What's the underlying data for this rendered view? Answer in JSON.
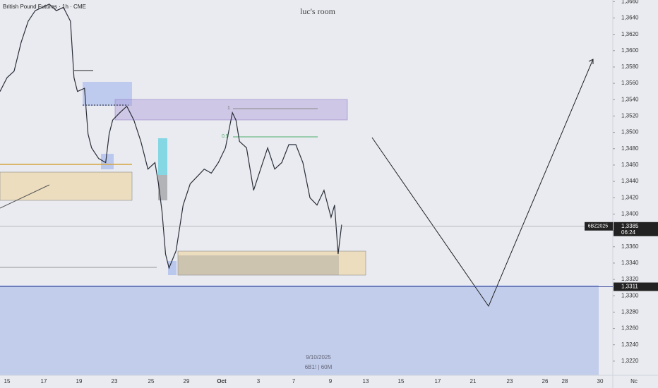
{
  "chart_data": {
    "type": "line",
    "title": "British Pound Futures · 1h · CME",
    "watermark": "luc's room",
    "date": "9/10/2025",
    "symbol": "6B1! | 60M",
    "x": [
      0,
      2,
      4,
      6,
      8,
      10,
      12,
      14,
      16,
      18,
      20,
      21,
      22,
      24,
      25,
      26,
      28,
      30,
      31,
      32,
      34,
      36,
      38,
      40,
      42,
      44,
      45,
      46,
      47,
      48,
      50,
      52,
      54,
      56,
      58,
      60,
      62,
      64,
      66,
      67,
      68,
      70,
      72,
      74,
      76,
      78,
      80,
      82,
      84,
      86,
      88,
      90,
      92,
      94,
      95,
      96,
      97
    ],
    "values": [
      1.355,
      1.3567,
      1.3575,
      1.361,
      1.3636,
      1.3649,
      1.3653,
      1.3657,
      1.3649,
      1.3653,
      1.3636,
      1.3567,
      1.355,
      1.3554,
      1.3498,
      1.3481,
      1.3468,
      1.3463,
      1.3498,
      1.3515,
      1.3524,
      1.3532,
      1.3515,
      1.3489,
      1.3455,
      1.3463,
      1.3437,
      1.3403,
      1.3351,
      1.3334,
      1.3355,
      1.3411,
      1.3437,
      1.3446,
      1.3455,
      1.345,
      1.3463,
      1.3481,
      1.3524,
      1.3515,
      1.3489,
      1.3481,
      1.3429,
      1.3455,
      1.3481,
      1.3455,
      1.3463,
      1.3485,
      1.3485,
      1.3463,
      1.342,
      1.3411,
      1.3429,
      1.3396,
      1.3411,
      1.3351,
      1.3387
    ],
    "color": "#2a2e39",
    "xlim": [
      0,
      174
    ],
    "ylim": [
      1.3213,
      1.3662
    ],
    "x_axis_labels": [
      "15",
      "17",
      "19",
      "23",
      "25",
      "29",
      "Oct",
      "3",
      "7",
      "9",
      "13",
      "15",
      "17",
      "21",
      "23",
      "26",
      "28",
      "30",
      "Nc"
    ],
    "yticks": [
      {
        "value": 1.322,
        "label": "1,3220"
      },
      {
        "value": 1.324,
        "label": "1,3240"
      },
      {
        "value": 1.326,
        "label": "1,3260"
      },
      {
        "value": 1.328,
        "label": "1,3280"
      },
      {
        "value": 1.33,
        "label": "1,3300"
      },
      {
        "value": 1.332,
        "label": "1,3320"
      },
      {
        "value": 1.334,
        "label": "1,3340"
      },
      {
        "value": 1.336,
        "label": "1,3360"
      },
      {
        "value": 1.338,
        "label": "1,3380"
      },
      {
        "value": 1.34,
        "label": "1,3400"
      },
      {
        "value": 1.342,
        "label": "1,3420"
      },
      {
        "value": 1.344,
        "label": "1,3440"
      },
      {
        "value": 1.346,
        "label": "1,3460"
      },
      {
        "value": 1.348,
        "label": "1,3480"
      },
      {
        "value": 1.35,
        "label": "1,3500"
      },
      {
        "value": 1.352,
        "label": "1,3520"
      },
      {
        "value": 1.354,
        "label": "1,3540"
      },
      {
        "value": 1.356,
        "label": "1,3560"
      },
      {
        "value": 1.358,
        "label": "1,3580"
      },
      {
        "value": 1.36,
        "label": "1,3600"
      },
      {
        "value": 1.362,
        "label": "1,3620"
      },
      {
        "value": 1.364,
        "label": "1,3640"
      },
      {
        "value": 1.366,
        "label": "1,3660"
      }
    ],
    "price_line": {
      "symbol": "6BZ2025",
      "value": 1.3385,
      "label": "1,3385",
      "countdown": "06:24"
    },
    "level": {
      "value": 1.3311,
      "label": "1,3311"
    },
    "fib_labels": [
      "1",
      "0.5"
    ]
  }
}
